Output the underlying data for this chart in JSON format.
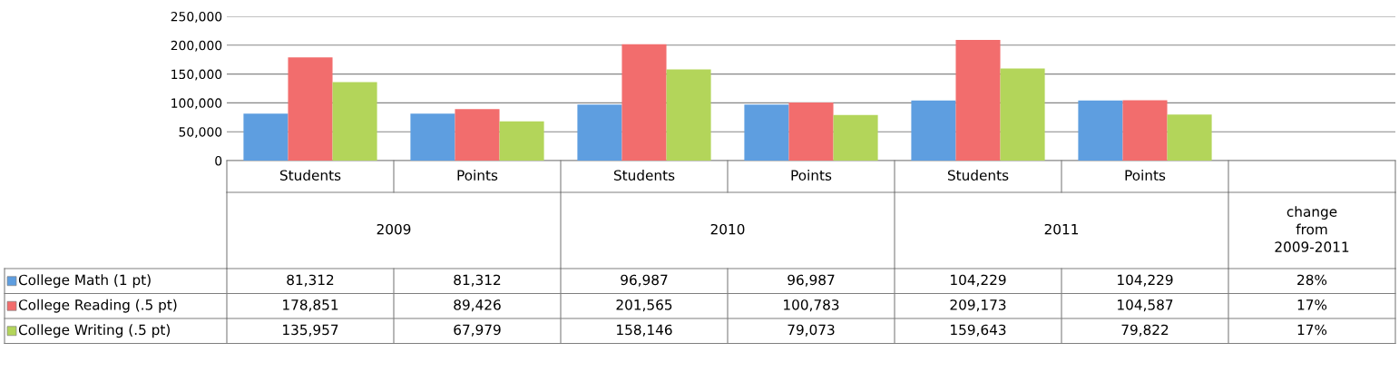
{
  "chart_data": {
    "type": "bar",
    "categories": [
      "Students",
      "Points",
      "Students",
      "Points",
      "Students",
      "Points",
      null
    ],
    "series": [
      {
        "name": "College Math (1 pt)",
        "color": "#5e9ee0",
        "values": [
          81312,
          81312,
          96987,
          96987,
          104229,
          104229,
          0.28
        ],
        "value_labels": [
          "81,312",
          "81,312",
          "96,987",
          "96,987",
          "104,229",
          "104,229",
          "28%"
        ]
      },
      {
        "name": "College Reading (.5 pt)",
        "color": "#f26d6d",
        "values": [
          178851,
          89426,
          201565,
          100783,
          209173,
          104587,
          0.17
        ],
        "value_labels": [
          "178,851",
          "89,426",
          "201,565",
          "100,783",
          "209,173",
          "104,587",
          "17%"
        ]
      },
      {
        "name": "College Writing (.5 pt)",
        "color": "#b3d55a",
        "values": [
          135957,
          67979,
          158146,
          79073,
          159643,
          79822,
          0.17
        ],
        "value_labels": [
          "135,957",
          "67,979",
          "158,146",
          "79,073",
          "159,643",
          "79,822",
          "17%"
        ]
      }
    ],
    "annotations": [
      "2009",
      "2010",
      "2011",
      "change\nfrom\n2009-2011"
    ],
    "ylim": [
      0,
      250000
    ],
    "yticks": [
      {
        "value": 0,
        "label": "0"
      },
      {
        "value": 50000,
        "label": "50,000"
      },
      {
        "value": 100000,
        "label": "100,000"
      },
      {
        "value": 150000,
        "label": "150,000"
      },
      {
        "value": 200000,
        "label": "200,000"
      },
      {
        "value": 250000,
        "label": "250,000"
      }
    ],
    "grid": "y",
    "legend": "bottom left"
  }
}
